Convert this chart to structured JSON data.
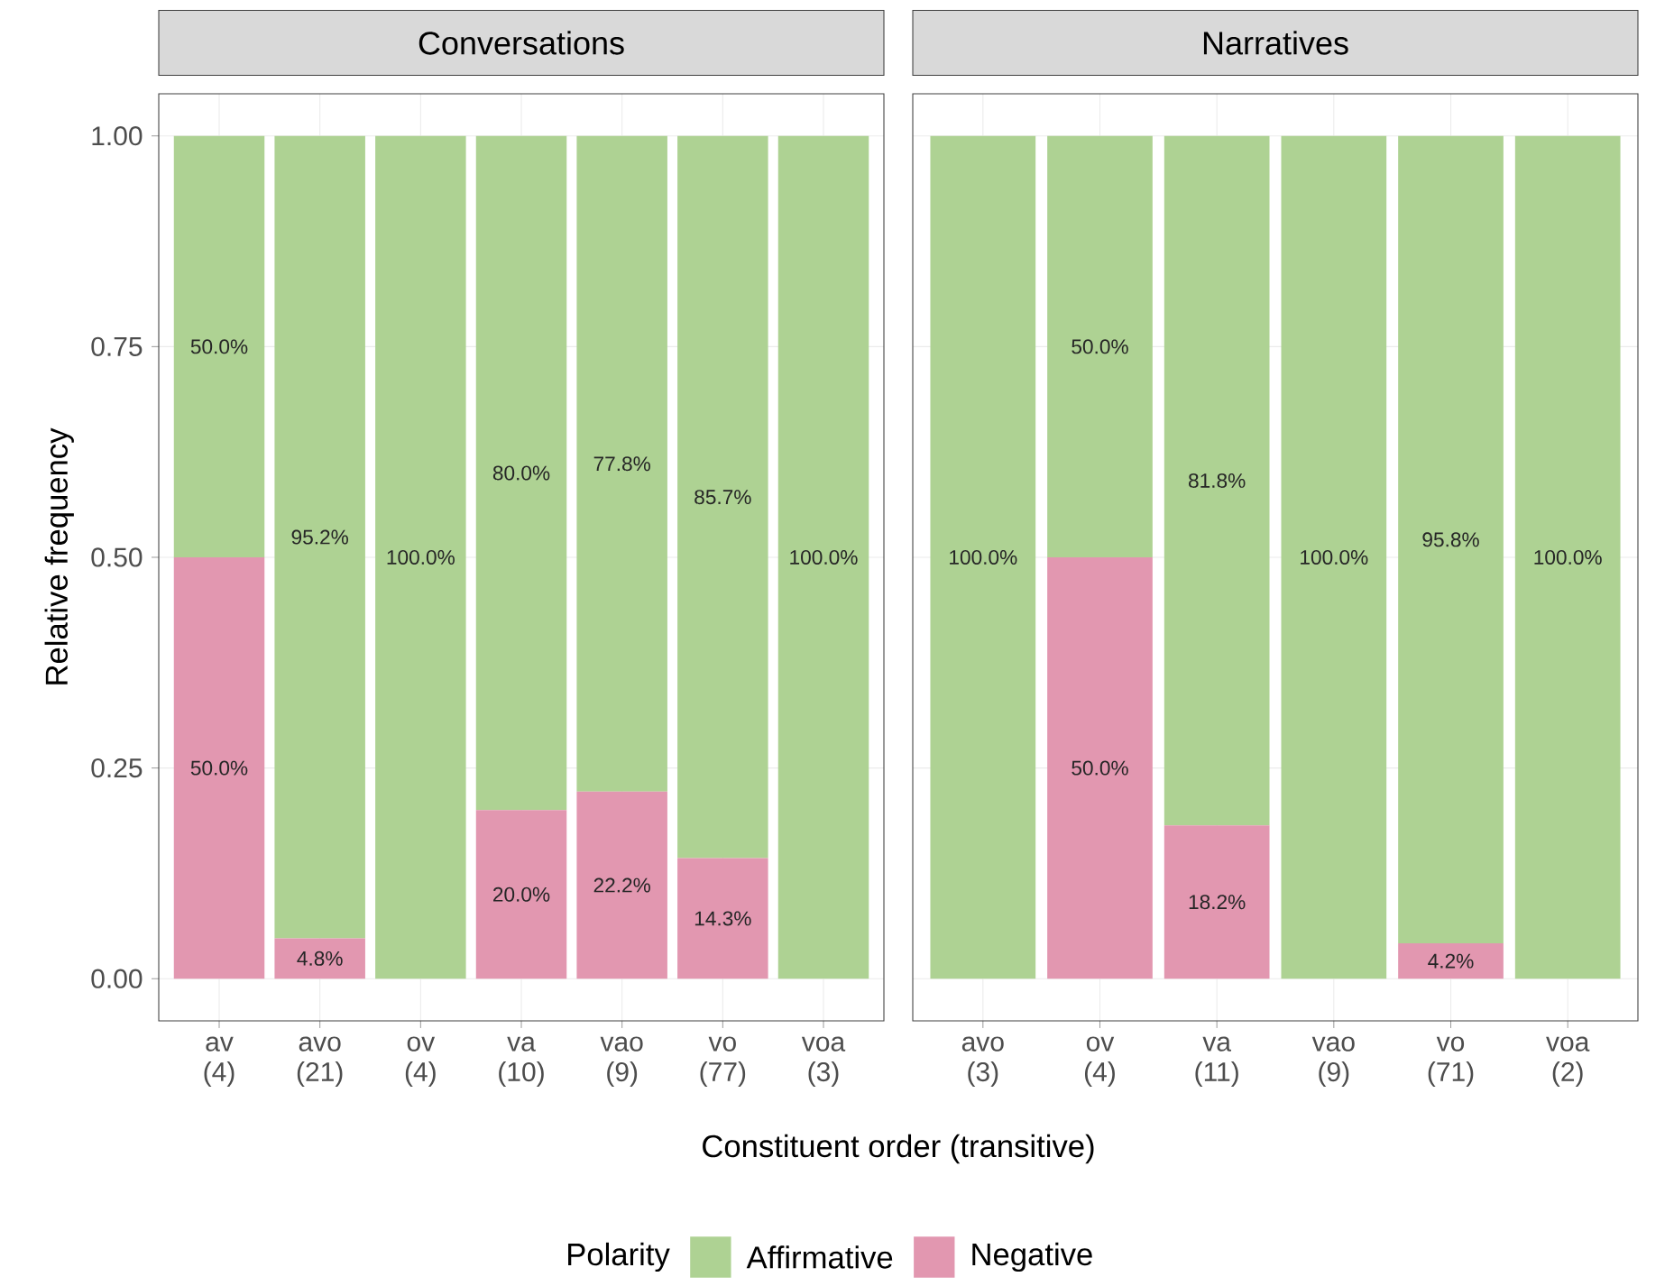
{
  "chart_data": [
    {
      "type": "bar",
      "title": "Conversations",
      "xlabel": "Constituent order (transitive)",
      "ylabel": "Relative frequency",
      "legend_title": "Polarity",
      "legend": "bottom",
      "stacked": true,
      "grid": true,
      "categories": [
        "av (4)",
        "avo (21)",
        "ov (4)",
        "va (10)",
        "vao (9)",
        "vo (77)",
        "voa (3)"
      ],
      "ylim": [
        -0.05,
        1.05
      ],
      "yticks": [
        {
          "value": 0,
          "label": "0.00"
        },
        {
          "value": 0.25,
          "label": "0.25"
        },
        {
          "value": 0.5,
          "label": "0.50"
        },
        {
          "value": 0.75,
          "label": "0.75"
        },
        {
          "value": 1,
          "label": "1.00"
        }
      ],
      "series": [
        {
          "name": "Negative",
          "color": "#e297b0",
          "values": [
            0.5,
            0.048,
            0,
            0.2,
            0.222,
            0.143,
            0
          ],
          "value_labels": [
            "50.0%",
            "4.8%",
            null,
            "20.0%",
            "22.2%",
            "14.3%",
            null
          ]
        },
        {
          "name": "Affirmative",
          "color": "#aed293",
          "values": [
            0.5,
            0.952,
            1,
            0.8,
            0.778,
            0.857,
            1
          ],
          "value_labels": [
            "50.0%",
            "95.2%",
            "100.0%",
            "80.0%",
            "77.8%",
            "85.7%",
            "100.0%"
          ]
        }
      ]
    },
    {
      "type": "bar",
      "title": "Narratives",
      "stacked": true,
      "grid": true,
      "tick_labels": "x",
      "categories": [
        "avo (3)",
        "ov (4)",
        "va (11)",
        "vao (9)",
        "vo (71)",
        "voa (2)"
      ],
      "ylim": [
        -0.05,
        1.05
      ],
      "yticks": [
        {
          "value": 0,
          "label": null
        },
        {
          "value": 0.25,
          "label": null
        },
        {
          "value": 0.5,
          "label": null
        },
        {
          "value": 0.75,
          "label": null
        },
        {
          "value": 1,
          "label": null
        }
      ],
      "series": [
        {
          "color": "#e297b0",
          "values": [
            0,
            0.5,
            0.182,
            0,
            0.042,
            0
          ],
          "value_labels": [
            null,
            "50.0%",
            "18.2%",
            null,
            "4.2%",
            null
          ]
        },
        {
          "color": "#aed293",
          "values": [
            1,
            0.5,
            0.818,
            1,
            0.958,
            1
          ],
          "value_labels": [
            "100.0%",
            "50.0%",
            "81.8%",
            "100.0%",
            "95.8%",
            "100.0%"
          ]
        }
      ]
    }
  ]
}
